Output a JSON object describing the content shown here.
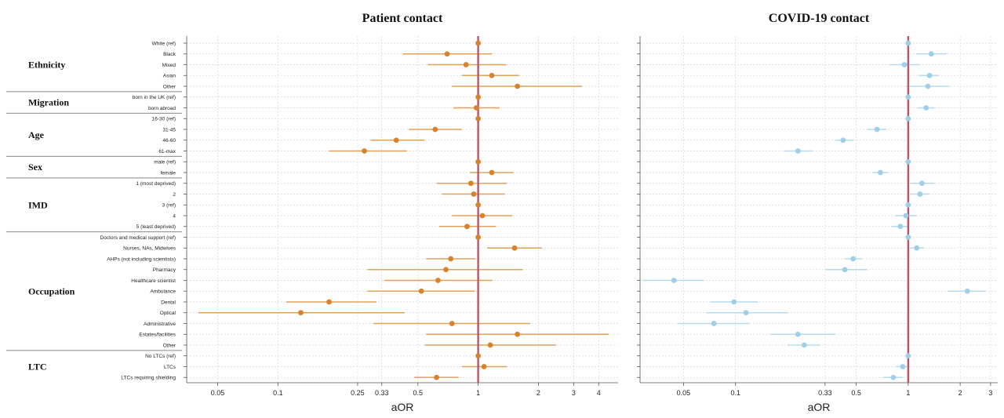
{
  "chart_data": {
    "type": "forest",
    "xlabel": "aOR",
    "x_scale": "log",
    "reference_line": 1,
    "rows": [
      {
        "group": "Ethnicity",
        "label": "White (ref)"
      },
      {
        "group": "Ethnicity",
        "label": "Black"
      },
      {
        "group": "Ethnicity",
        "label": "Mixed"
      },
      {
        "group": "Ethnicity",
        "label": "Asian"
      },
      {
        "group": "Ethnicity",
        "label": "Other"
      },
      {
        "group": "Migration",
        "label": "born in the UK (ref)"
      },
      {
        "group": "Migration",
        "label": "born abroad"
      },
      {
        "group": "Age",
        "label": "16-30 (ref)"
      },
      {
        "group": "Age",
        "label": "31-45"
      },
      {
        "group": "Age",
        "label": "46-60"
      },
      {
        "group": "Age",
        "label": "61-max"
      },
      {
        "group": "Sex",
        "label": "male (ref)"
      },
      {
        "group": "Sex",
        "label": "female"
      },
      {
        "group": "IMD",
        "label": "1 (most deprived)"
      },
      {
        "group": "IMD",
        "label": "2"
      },
      {
        "group": "IMD",
        "label": "3 (ref)"
      },
      {
        "group": "IMD",
        "label": "4"
      },
      {
        "group": "IMD",
        "label": "5 (least deprived)"
      },
      {
        "group": "Occupation",
        "label": "Doctors and medical support (ref)"
      },
      {
        "group": "Occupation",
        "label": "Nurses, NAs, Midwives"
      },
      {
        "group": "Occupation",
        "label": "AHPs (not including scientists)"
      },
      {
        "group": "Occupation",
        "label": "Pharmacy"
      },
      {
        "group": "Occupation",
        "label": "Healthcare scientist"
      },
      {
        "group": "Occupation",
        "label": "Ambulance"
      },
      {
        "group": "Occupation",
        "label": "Dental"
      },
      {
        "group": "Occupation",
        "label": "Optical"
      },
      {
        "group": "Occupation",
        "label": "Administrative"
      },
      {
        "group": "Occupation",
        "label": "Estates/facilities"
      },
      {
        "group": "Occupation",
        "label": "Other"
      },
      {
        "group": "LTC",
        "label": "No LTCs (ref)"
      },
      {
        "group": "LTC",
        "label": "LTCs"
      },
      {
        "group": "LTC",
        "label": "LTCs requiring shielding"
      }
    ],
    "groups": [
      "Ethnicity",
      "Migration",
      "Age",
      "Sex",
      "IMD",
      "Occupation",
      "LTC"
    ],
    "panels": [
      {
        "title": "Patient contact",
        "color": "#d9822b",
        "ci_color": "#e0a25a",
        "xlim": [
          0.035,
          5
        ],
        "ticks": [
          0.05,
          0.1,
          0.25,
          0.33,
          0.5,
          1,
          2,
          3,
          4
        ],
        "tick_labels": [
          "0.05",
          "0.1",
          "0.25",
          "0.33",
          "0.5",
          "1",
          "2",
          "3",
          "4"
        ],
        "estimates": [
          [
            1,
            1,
            1
          ],
          [
            0.7,
            0.42,
            1.17
          ],
          [
            0.87,
            0.56,
            1.38
          ],
          [
            1.17,
            0.83,
            1.6
          ],
          [
            1.57,
            0.74,
            3.3
          ],
          [
            1,
            1,
            1
          ],
          [
            0.98,
            0.75,
            1.28
          ],
          [
            1,
            1,
            1
          ],
          [
            0.61,
            0.45,
            0.83
          ],
          [
            0.39,
            0.29,
            0.54
          ],
          [
            0.27,
            0.18,
            0.44
          ],
          [
            1,
            1,
            1
          ],
          [
            1.17,
            0.91,
            1.5
          ],
          [
            0.92,
            0.62,
            1.39
          ],
          [
            0.95,
            0.66,
            1.36
          ],
          [
            1,
            1,
            1
          ],
          [
            1.05,
            0.74,
            1.48
          ],
          [
            0.88,
            0.64,
            1.23
          ],
          [
            1,
            1,
            1
          ],
          [
            1.52,
            1.11,
            2.08
          ],
          [
            0.73,
            0.55,
            0.97
          ],
          [
            0.69,
            0.28,
            1.67
          ],
          [
            0.63,
            0.34,
            1.18
          ],
          [
            0.52,
            0.28,
            0.96
          ],
          [
            0.18,
            0.11,
            0.31
          ],
          [
            0.13,
            0.04,
            0.43
          ],
          [
            0.74,
            0.3,
            1.82
          ],
          [
            1.57,
            0.55,
            4.5
          ],
          [
            1.15,
            0.54,
            2.45
          ],
          [
            1,
            1,
            1
          ],
          [
            1.07,
            0.83,
            1.39
          ],
          [
            0.62,
            0.48,
            0.8
          ]
        ]
      },
      {
        "title": "COVID-19 contact",
        "color": "#9fcfe8",
        "ci_color": "#b5dbef",
        "xlim": [
          0.028,
          3.3
        ],
        "ticks": [
          0.05,
          0.1,
          0.33,
          0.5,
          1,
          2,
          3
        ],
        "tick_labels": [
          "0.05",
          "0.1",
          "0.33",
          "0.5",
          "1",
          "2",
          "3"
        ],
        "estimates": [
          [
            1,
            1,
            1
          ],
          [
            1.36,
            1.11,
            1.67
          ],
          [
            0.95,
            0.78,
            1.16
          ],
          [
            1.33,
            1.15,
            1.5
          ],
          [
            1.3,
            0.97,
            1.74
          ],
          [
            1,
            1,
            1
          ],
          [
            1.27,
            1.14,
            1.42
          ],
          [
            1,
            1,
            1
          ],
          [
            0.66,
            0.58,
            0.75
          ],
          [
            0.42,
            0.38,
            0.48
          ],
          [
            0.23,
            0.19,
            0.28
          ],
          [
            1,
            1,
            1
          ],
          [
            0.69,
            0.62,
            0.77
          ],
          [
            1.2,
            1.03,
            1.42
          ],
          [
            1.17,
            1.03,
            1.33
          ],
          [
            1,
            1,
            1
          ],
          [
            0.97,
            0.84,
            1.12
          ],
          [
            0.9,
            0.8,
            1.01
          ],
          [
            1,
            1,
            1
          ],
          [
            1.12,
            1.02,
            1.24
          ],
          [
            0.48,
            0.43,
            0.54
          ],
          [
            0.43,
            0.33,
            0.58
          ],
          [
            0.044,
            0.029,
            0.066
          ],
          [
            2.2,
            1.7,
            2.8
          ],
          [
            0.098,
            0.072,
            0.135
          ],
          [
            0.115,
            0.068,
            0.2
          ],
          [
            0.075,
            0.046,
            0.12
          ],
          [
            0.23,
            0.16,
            0.38
          ],
          [
            0.25,
            0.2,
            0.31
          ],
          [
            1,
            1,
            1
          ],
          [
            0.93,
            0.85,
            1.02
          ],
          [
            0.82,
            0.72,
            0.93
          ]
        ]
      }
    ]
  }
}
